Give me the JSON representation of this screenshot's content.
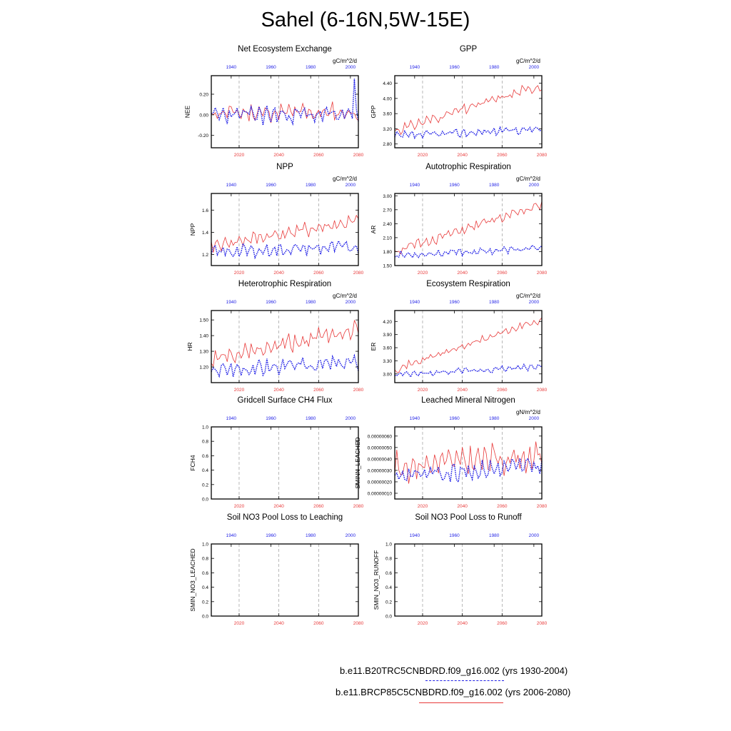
{
  "title": "Sahel (6-16N,5W-15E)",
  "colors": {
    "hist": "#1f1fe6",
    "rcp": "#e83a3a",
    "grid": "#8a8a8a",
    "axis": "#000000"
  },
  "legend": {
    "hist_label": "b.e11.B20TRC5CNBDRD.f09_g16.002 (yrs 1930-2004)",
    "rcp_label": "b.e11.BRCP85C5CNBDRD.f09_g16.002 (yrs 2006-2080)"
  },
  "chart_data": [
    {
      "type": "line",
      "title": "Net Ecosystem Exchange",
      "ylabel": "NEE",
      "units": "gC/m^2/d",
      "x_bottom": [
        2006,
        2080
      ],
      "x_top": [
        1930,
        2004
      ],
      "bottom_ticks": [
        "2020",
        "2040",
        "2060",
        "2080"
      ],
      "top_ticks": [
        "1940",
        "1960",
        "1980",
        "2000"
      ],
      "ylim": [
        -0.32,
        0.38
      ],
      "y_ticks": [
        -0.2,
        0.0,
        0.2
      ],
      "y_tick_labels": [
        "-0.20",
        "0.00",
        "0.20"
      ],
      "series": [
        {
          "style": "solid",
          "color": "rcp",
          "base": 0.02,
          "trend": 0.0,
          "amp": 0.13,
          "seed": 11
        },
        {
          "style": "dotted",
          "color": "hist",
          "base": 0.0,
          "trend": 0.0,
          "amp": 0.12,
          "seed": 23,
          "spike": 0.35
        }
      ]
    },
    {
      "type": "line",
      "title": "GPP",
      "ylabel": "GPP",
      "units": "gC/m^2/d",
      "x_bottom": [
        2006,
        2080
      ],
      "x_top": [
        1930,
        2004
      ],
      "bottom_ticks": [
        "2020",
        "2040",
        "2060",
        "2080"
      ],
      "top_ticks": [
        "1940",
        "1960",
        "1980",
        "2000"
      ],
      "ylim": [
        2.7,
        4.6
      ],
      "y_ticks": [
        2.8,
        3.2,
        3.6,
        4.0,
        4.4
      ],
      "y_tick_labels": [
        "2.80",
        "3.20",
        "3.60",
        "4.00",
        "4.40"
      ],
      "series": [
        {
          "style": "solid",
          "color": "rcp",
          "base": 3.15,
          "trend": 1.2,
          "amp": 0.2,
          "seed": 31
        },
        {
          "style": "dotted",
          "color": "hist",
          "base": 3.0,
          "trend": 0.2,
          "amp": 0.15,
          "seed": 37
        }
      ]
    },
    {
      "type": "line",
      "title": "NPP",
      "ylabel": "NPP",
      "units": "gC/m^2/d",
      "x_bottom": [
        2006,
        2080
      ],
      "x_top": [
        1930,
        2004
      ],
      "bottom_ticks": [
        "2020",
        "2040",
        "2060",
        "2080"
      ],
      "top_ticks": [
        "1940",
        "1960",
        "1980",
        "2000"
      ],
      "ylim": [
        1.1,
        1.75
      ],
      "y_ticks": [
        1.2,
        1.4,
        1.6
      ],
      "y_tick_labels": [
        "1.2",
        "1.4",
        "1.6"
      ],
      "series": [
        {
          "style": "solid",
          "color": "rcp",
          "base": 1.28,
          "trend": 0.22,
          "amp": 0.09,
          "seed": 41
        },
        {
          "style": "dotted",
          "color": "hist",
          "base": 1.22,
          "trend": 0.05,
          "amp": 0.08,
          "seed": 43
        }
      ]
    },
    {
      "type": "line",
      "title": "Autotrophic Respiration",
      "ylabel": "AR",
      "units": "gC/m^2/d",
      "x_bottom": [
        2006,
        2080
      ],
      "x_top": [
        1930,
        2004
      ],
      "bottom_ticks": [
        "2020",
        "2040",
        "2060",
        "2080"
      ],
      "top_ticks": [
        "1940",
        "1960",
        "1980",
        "2000"
      ],
      "ylim": [
        1.5,
        3.05
      ],
      "y_ticks": [
        1.5,
        1.8,
        2.1,
        2.4,
        2.7,
        3.0
      ],
      "y_tick_labels": [
        "1.50",
        "1.80",
        "2.10",
        "2.40",
        "2.70",
        "3.00"
      ],
      "series": [
        {
          "style": "solid",
          "color": "rcp",
          "base": 1.8,
          "trend": 1.0,
          "amp": 0.15,
          "seed": 51
        },
        {
          "style": "dotted",
          "color": "hist",
          "base": 1.72,
          "trend": 0.15,
          "amp": 0.1,
          "seed": 53
        }
      ]
    },
    {
      "type": "line",
      "title": "Heterotrophic Respiration",
      "ylabel": "HR",
      "units": "gC/m^2/d",
      "x_bottom": [
        2006,
        2080
      ],
      "x_top": [
        1930,
        2004
      ],
      "bottom_ticks": [
        "2020",
        "2040",
        "2060",
        "2080"
      ],
      "top_ticks": [
        "1940",
        "1960",
        "1980",
        "2000"
      ],
      "ylim": [
        1.1,
        1.56
      ],
      "y_ticks": [
        1.2,
        1.3,
        1.4,
        1.5
      ],
      "y_tick_labels": [
        "1.20",
        "1.30",
        "1.40",
        "1.50"
      ],
      "series": [
        {
          "style": "solid",
          "color": "rcp",
          "base": 1.24,
          "trend": 0.2,
          "amp": 0.08,
          "seed": 61
        },
        {
          "style": "dotted",
          "color": "hist",
          "base": 1.18,
          "trend": 0.05,
          "amp": 0.07,
          "seed": 67
        }
      ]
    },
    {
      "type": "line",
      "title": "Ecosystem Respiration",
      "ylabel": "ER",
      "units": "gC/m^2/d",
      "x_bottom": [
        2006,
        2080
      ],
      "x_top": [
        1930,
        2004
      ],
      "bottom_ticks": [
        "2020",
        "2040",
        "2060",
        "2080"
      ],
      "top_ticks": [
        "1940",
        "1960",
        "1980",
        "2000"
      ],
      "ylim": [
        2.8,
        4.45
      ],
      "y_ticks": [
        3.0,
        3.3,
        3.6,
        3.9,
        4.2
      ],
      "y_tick_labels": [
        "3.00",
        "3.30",
        "3.60",
        "3.90",
        "4.20"
      ],
      "series": [
        {
          "style": "solid",
          "color": "rcp",
          "base": 3.1,
          "trend": 1.15,
          "amp": 0.12,
          "seed": 71
        },
        {
          "style": "dotted",
          "color": "hist",
          "base": 2.97,
          "trend": 0.2,
          "amp": 0.09,
          "seed": 73
        }
      ]
    },
    {
      "type": "line",
      "title": "Gridcell Surface CH4 Flux",
      "ylabel": "FCH4",
      "units": "",
      "x_bottom": [
        2006,
        2080
      ],
      "x_top": [
        1930,
        2004
      ],
      "bottom_ticks": [
        "2020",
        "2040",
        "2060",
        "2080"
      ],
      "top_ticks": [
        "1940",
        "1960",
        "1980",
        "2000"
      ],
      "ylim": [
        0,
        1
      ],
      "y_ticks": [
        0,
        0.2,
        0.4,
        0.6,
        0.8,
        1.0
      ],
      "y_tick_labels": [
        "0.0",
        "0.2",
        "0.4",
        "0.6",
        "0.8",
        "1.0"
      ],
      "series": []
    },
    {
      "type": "line",
      "title": "Leached Mineral Nitrogen",
      "ylabel": "SMINN_LEACHED",
      "units": "gN/m^2/d",
      "x_bottom": [
        2006,
        2080
      ],
      "x_top": [
        1930,
        2004
      ],
      "bottom_ticks": [
        "2020",
        "2040",
        "2060",
        "2080"
      ],
      "top_ticks": [
        "1940",
        "1960",
        "1980",
        "2000"
      ],
      "ylim": [
        5e-08,
        6.8e-07
      ],
      "y_ticks": [
        1e-07,
        2e-07,
        3e-07,
        4e-07,
        5e-07,
        6e-07
      ],
      "y_tick_labels": [
        "0.00000010",
        "0.00000020",
        "0.00000030",
        "0.00000040",
        "0.00000050",
        "0.00000060"
      ],
      "series": [
        {
          "style": "solid",
          "color": "rcp",
          "base": 3.3e-07,
          "trend": 1e-07,
          "amp": 1.8e-07,
          "seed": 81
        },
        {
          "style": "dotted",
          "color": "hist",
          "base": 2.6e-07,
          "trend": 8e-08,
          "amp": 1.2e-07,
          "seed": 83
        }
      ]
    },
    {
      "type": "line",
      "title": "Soil NO3 Pool Loss to Leaching",
      "ylabel": "SMIN_NO3_LEACHED",
      "units": "",
      "x_bottom": [
        2006,
        2080
      ],
      "x_top": [
        1930,
        2004
      ],
      "bottom_ticks": [
        "2020",
        "2040",
        "2060",
        "2080"
      ],
      "top_ticks": [
        "1940",
        "1960",
        "1980",
        "2000"
      ],
      "ylim": [
        0,
        1
      ],
      "y_ticks": [
        0,
        0.2,
        0.4,
        0.6,
        0.8,
        1.0
      ],
      "y_tick_labels": [
        "0.0",
        "0.2",
        "0.4",
        "0.6",
        "0.8",
        "1.0"
      ],
      "series": []
    },
    {
      "type": "line",
      "title": "Soil NO3 Pool Loss to Runoff",
      "ylabel": "SMIN_NO3_RUNOFF",
      "units": "",
      "x_bottom": [
        2006,
        2080
      ],
      "x_top": [
        1930,
        2004
      ],
      "bottom_ticks": [
        "2020",
        "2040",
        "2060",
        "2080"
      ],
      "top_ticks": [
        "1940",
        "1960",
        "1980",
        "2000"
      ],
      "ylim": [
        0,
        1
      ],
      "y_ticks": [
        0,
        0.2,
        0.4,
        0.6,
        0.8,
        1.0
      ],
      "y_tick_labels": [
        "0.0",
        "0.2",
        "0.4",
        "0.6",
        "0.8",
        "1.0"
      ],
      "series": []
    }
  ]
}
